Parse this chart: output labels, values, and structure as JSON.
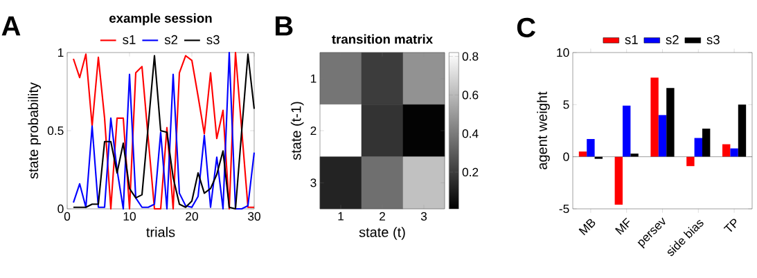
{
  "chart_data": [
    {
      "type": "line",
      "title": "example session",
      "xlabel": "trials",
      "ylabel": "state probability",
      "annotations": [
        "A"
      ],
      "x": [
        1,
        2,
        3,
        4,
        5,
        6,
        7,
        8,
        9,
        10,
        11,
        12,
        13,
        14,
        15,
        16,
        17,
        18,
        19,
        20,
        21,
        22,
        23,
        24,
        25,
        26,
        27,
        28,
        29,
        30
      ],
      "series": [
        {
          "name": "s1",
          "color": "#ff0000",
          "values": [
            0.96,
            0.84,
            0.99,
            0.53,
            0.97,
            0.58,
            0,
            0.58,
            0.58,
            0,
            0.87,
            0.91,
            0.45,
            0,
            0,
            0.52,
            0,
            0.87,
            0.98,
            0.95,
            0.72,
            0.48,
            0.87,
            0.45,
            0.63,
            0,
            1.0,
            null,
            0.01,
            0.01
          ]
        },
        {
          "name": "s2",
          "color": "#0000ff",
          "values": [
            0.04,
            0.16,
            0.01,
            0.53,
            0.01,
            0.01,
            0.58,
            0.25,
            0,
            0.86,
            0.07,
            0.01,
            0.01,
            0.03,
            0.49,
            0,
            0.86,
            0.1,
            0.02,
            0.01,
            0.08,
            0.47,
            0.01,
            0.33,
            0,
            1.0,
            0,
            0,
            0.02,
            0.36
          ]
        },
        {
          "name": "s3",
          "color": "#000000",
          "values": [
            0.01,
            0.01,
            0.01,
            0.03,
            0.03,
            0.43,
            0.43,
            0.23,
            0.42,
            0.13,
            0.07,
            0.09,
            0.53,
            0.98,
            0.5,
            0.49,
            0.2,
            0.03,
            0.01,
            0.05,
            0.23,
            0.1,
            0.13,
            0.22,
            0.37,
            0.01,
            0,
            0.5,
            0.99,
            0.64
          ]
        }
      ],
      "xlim": [
        0,
        30
      ],
      "ylim": [
        0,
        1
      ],
      "xticks": [
        0,
        10,
        20,
        30
      ],
      "yticks": [
        0,
        0.5,
        1
      ],
      "legend": "top"
    },
    {
      "type": "heatmap",
      "title": "transition matrix",
      "xlabel": "state (t)",
      "ylabel": "state (t-1)",
      "annotations": [
        "B"
      ],
      "categories": [
        "1",
        "2",
        "3"
      ],
      "y_categories": [
        "1",
        "2",
        "3"
      ],
      "cells": [
        [
          0.38,
          0.2,
          0.47
        ],
        [
          0.82,
          0.17,
          0.02
        ],
        [
          0.12,
          0.36,
          0.62
        ]
      ],
      "clim": [
        0.01,
        0.82
      ],
      "cticks": [
        0.2,
        0.4,
        0.6,
        0.8
      ]
    },
    {
      "type": "bar",
      "ylabel": "agent weight",
      "annotations": [
        "C"
      ],
      "categories": [
        "MB",
        "MF",
        "persev",
        "side bias",
        "TP"
      ],
      "series": [
        {
          "name": "s1",
          "color": "#ff0000",
          "values": [
            0.5,
            -4.6,
            7.6,
            -0.9,
            1.2
          ]
        },
        {
          "name": "s2",
          "color": "#0000ff",
          "values": [
            1.7,
            4.9,
            4.0,
            1.8,
            0.8
          ]
        },
        {
          "name": "s3",
          "color": "#000000",
          "values": [
            -0.2,
            0.3,
            6.6,
            2.7,
            5.0
          ]
        }
      ],
      "ylim": [
        -5,
        10
      ],
      "yticks": [
        -5,
        0,
        5,
        10
      ],
      "legend": "top",
      "ref_lines": [
        {
          "axis": "y",
          "value": 0
        }
      ]
    }
  ]
}
